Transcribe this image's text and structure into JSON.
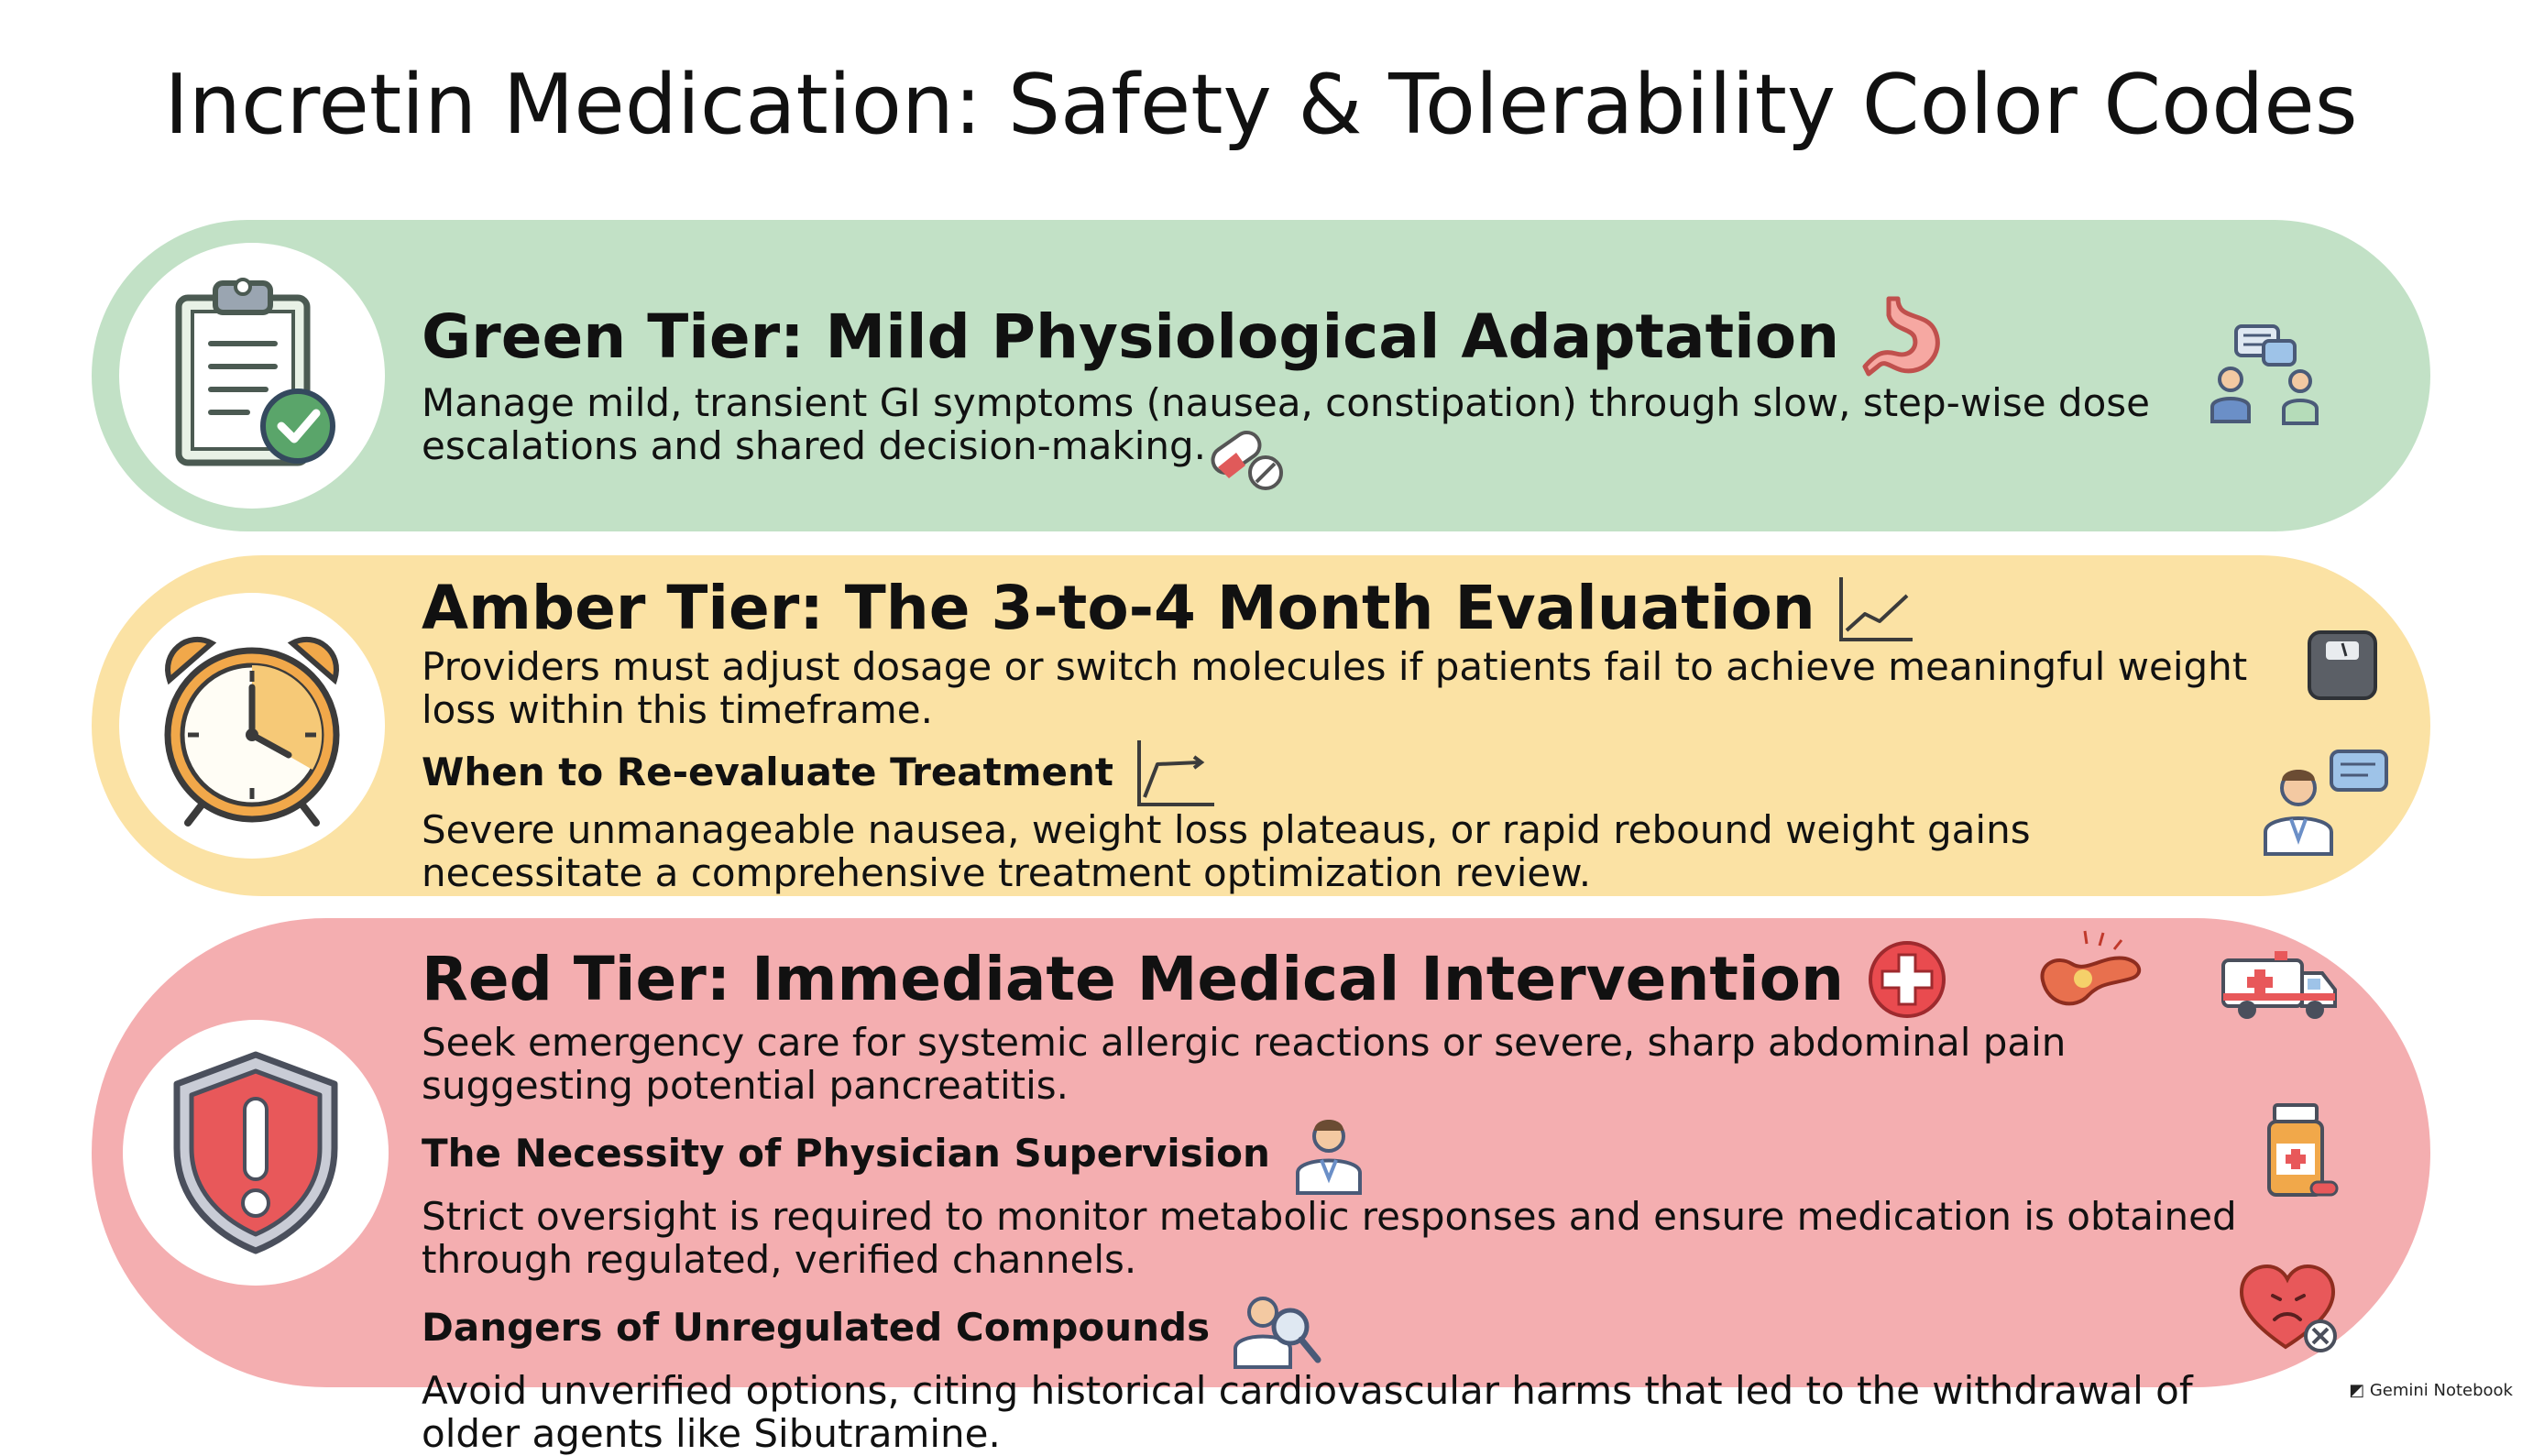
{
  "title": "Incretin Medication: Safety & Tolerability Color Codes",
  "tiers": {
    "green": {
      "heading": "Green Tier: Mild Physiological Adaptation",
      "body": "Manage mild, transient GI symptoms (nausea, constipation) through slow, step-wise dose escalations and shared decision-making.",
      "badge_icon": "clipboard-check-icon",
      "icons": [
        "stomach-icon",
        "pill-icon",
        "patient-provider-chat-icon"
      ],
      "color": "#c2e1c6"
    },
    "amber": {
      "heading": "Amber Tier: The 3-to-4 Month Evaluation",
      "body": "Providers must adjust dosage or switch molecules if patients fail to achieve meaningful weight loss within this timeframe.",
      "sub_heading": "When to Re-evaluate Treatment",
      "sub_body": "Severe unmanageable nausea, weight loss plateaus, or rapid rebound weight gains necessitate a comprehensive treatment optimization review.",
      "badge_icon": "alarm-clock-icon",
      "icons": [
        "trend-chart-icon",
        "scale-icon",
        "plateau-chart-icon",
        "doctor-chat-icon"
      ],
      "color": "#fbe2a4"
    },
    "red": {
      "heading": "Red Tier: Immediate Medical Intervention",
      "body": "Seek emergency care for systemic allergic reactions or severe, sharp abdominal pain suggesting potential pancreatitis.",
      "sections": [
        {
          "heading": "The Necessity of Physician Supervision",
          "body": "Strict oversight is required to monitor metabolic responses and ensure medication is obtained through regulated, verified channels."
        },
        {
          "heading": "Dangers of Unregulated Compounds",
          "body": "Avoid unverified options, citing historical cardiovascular harms that led to the withdrawal of older agents like Sibutramine."
        }
      ],
      "badge_icon": "warning-shield-icon",
      "icons": [
        "medical-cross-icon",
        "pancreas-icon",
        "ambulance-icon",
        "physician-icon",
        "medicine-bottle-icon",
        "magnifier-doctor-icon",
        "broken-heart-icon"
      ],
      "color": "#f4aeb0"
    }
  },
  "footer": "Gemini Notebook"
}
